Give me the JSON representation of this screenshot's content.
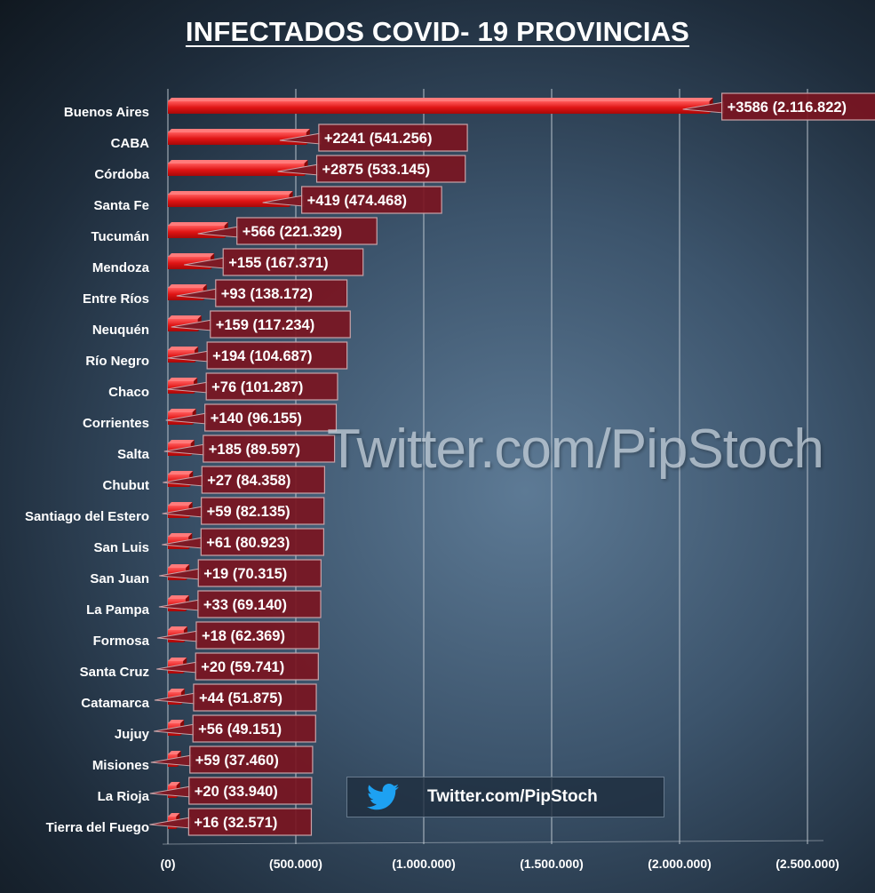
{
  "chart_data": {
    "type": "bar",
    "orientation": "horizontal",
    "title": "INFECTADOS COVID- 19  PROVINCIAS",
    "categories": [
      "Buenos Aires",
      "CABA",
      "Córdoba",
      "Santa Fe",
      "Tucumán",
      "Mendoza",
      "Entre Ríos",
      "Neuquén",
      "Río Negro",
      "Chaco",
      "Corrientes",
      "Salta",
      "Chubut",
      "Santiago del Estero",
      "San Luis",
      "San Juan",
      "La Pampa",
      "Formosa",
      "Santa Cruz",
      "Catamarca",
      "Jujuy",
      "Misiones",
      "La Rioja",
      "Tierra del Fuego"
    ],
    "values": [
      2116822,
      541256,
      533145,
      474468,
      221329,
      167371,
      138172,
      117234,
      104687,
      101287,
      96155,
      89597,
      84358,
      82135,
      80923,
      70315,
      69140,
      62369,
      59741,
      51875,
      49151,
      37460,
      33940,
      32571
    ],
    "data_labels": [
      "+3586  (2.116.822)",
      "+2241  (541.256)",
      "+2875  (533.145)",
      "+419  (474.468)",
      "+566  (221.329)",
      "+155  (167.371)",
      "+93  (138.172)",
      "+159  (117.234)",
      "+194  (104.687)",
      "+76  (101.287)",
      "+140  (96.155)",
      "+185  (89.597)",
      "+27  (84.358)",
      "+59  (82.135)",
      "+61  (80.923)",
      "+19  (70.315)",
      "+33  (69.140)",
      "+18  (62.369)",
      "+20  (59.741)",
      "+44  (51.875)",
      "+56  (49.151)",
      "+59  (37.460)",
      "+20  (33.940)",
      "+16  (32.571)"
    ],
    "x_ticks": [
      0,
      500000,
      1000000,
      1500000,
      2000000,
      2500000
    ],
    "x_tick_labels": [
      "(0)",
      "(500.000)",
      "(1.000.000)",
      "(1.500.000)",
      "(2.000.000)",
      "(2.500.000)"
    ],
    "xlim": [
      0,
      2500000
    ],
    "grid": true,
    "bar_color": "#e01515"
  },
  "watermark": {
    "text_large": "Twitter.com/PipStoch",
    "text_box": "Twitter.com/PipStoch",
    "icon": "twitter-bird-icon",
    "icon_color": "#1da1f2"
  }
}
